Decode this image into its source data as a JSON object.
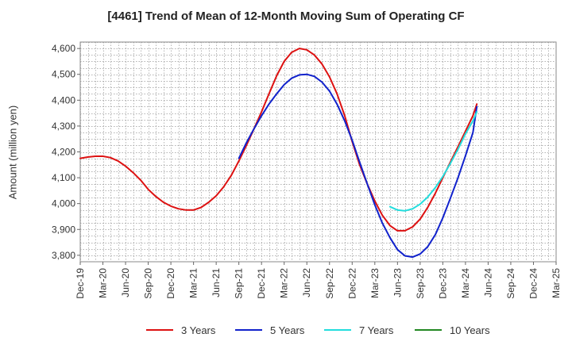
{
  "chart_data": {
    "type": "line",
    "title": "[4461]  Trend of Mean of 12-Month Moving Sum of Operating CF",
    "xlabel": "",
    "ylabel": "Amount (million yen)",
    "ylim": [
      3775,
      4625
    ],
    "yticks": [
      3800,
      3900,
      4000,
      4100,
      4200,
      4300,
      4400,
      4500,
      4600
    ],
    "ytick_labels": [
      "3,800",
      "3,900",
      "4,000",
      "4,100",
      "4,200",
      "4,300",
      "4,400",
      "4,500",
      "4,600"
    ],
    "categories": [
      "Dec-19",
      "Mar-20",
      "Jun-20",
      "Sep-20",
      "Dec-20",
      "Mar-21",
      "Jun-21",
      "Sep-21",
      "Dec-21",
      "Mar-22",
      "Jun-22",
      "Sep-22",
      "Dec-22",
      "Mar-23",
      "Jun-23",
      "Sep-23",
      "Dec-23",
      "Mar-24",
      "Jun-24",
      "Sep-24",
      "Dec-24",
      "Mar-25"
    ],
    "grid": true,
    "legend_position": "bottom",
    "series": [
      {
        "name": "3 Years",
        "color": "#dd1111",
        "points": [
          [
            0,
            4175
          ],
          [
            0.33,
            4180
          ],
          [
            0.67,
            4183
          ],
          [
            1,
            4183
          ],
          [
            1.33,
            4178
          ],
          [
            1.67,
            4165
          ],
          [
            2,
            4145
          ],
          [
            2.33,
            4120
          ],
          [
            2.67,
            4090
          ],
          [
            3,
            4055
          ],
          [
            3.33,
            4028
          ],
          [
            3.67,
            4005
          ],
          [
            4,
            3990
          ],
          [
            4.33,
            3980
          ],
          [
            4.67,
            3975
          ],
          [
            5,
            3975
          ],
          [
            5.33,
            3985
          ],
          [
            5.67,
            4005
          ],
          [
            6,
            4030
          ],
          [
            6.33,
            4065
          ],
          [
            6.67,
            4110
          ],
          [
            7,
            4165
          ],
          [
            7.33,
            4225
          ],
          [
            7.67,
            4290
          ],
          [
            8,
            4355
          ],
          [
            8.33,
            4425
          ],
          [
            8.67,
            4495
          ],
          [
            9,
            4550
          ],
          [
            9.33,
            4585
          ],
          [
            9.67,
            4600
          ],
          [
            10,
            4595
          ],
          [
            10.33,
            4575
          ],
          [
            10.67,
            4540
          ],
          [
            11,
            4490
          ],
          [
            11.33,
            4425
          ],
          [
            11.67,
            4340
          ],
          [
            12,
            4240
          ],
          [
            12.33,
            4150
          ],
          [
            12.67,
            4075
          ],
          [
            13,
            4010
          ],
          [
            13.33,
            3955
          ],
          [
            13.67,
            3915
          ],
          [
            14,
            3895
          ],
          [
            14.33,
            3895
          ],
          [
            14.67,
            3910
          ],
          [
            15,
            3940
          ],
          [
            15.33,
            3985
          ],
          [
            15.67,
            4040
          ],
          [
            16,
            4100
          ],
          [
            16.33,
            4160
          ],
          [
            16.67,
            4220
          ],
          [
            17,
            4280
          ],
          [
            17.33,
            4340
          ],
          [
            17.5,
            4385
          ]
        ]
      },
      {
        "name": "5 Years",
        "color": "#1122cc",
        "points": [
          [
            7,
            4175
          ],
          [
            7.33,
            4235
          ],
          [
            7.67,
            4290
          ],
          [
            8,
            4340
          ],
          [
            8.33,
            4385
          ],
          [
            8.67,
            4425
          ],
          [
            9,
            4460
          ],
          [
            9.33,
            4485
          ],
          [
            9.67,
            4498
          ],
          [
            10,
            4500
          ],
          [
            10.33,
            4492
          ],
          [
            10.67,
            4470
          ],
          [
            11,
            4435
          ],
          [
            11.33,
            4385
          ],
          [
            11.67,
            4320
          ],
          [
            12,
            4245
          ],
          [
            12.33,
            4160
          ],
          [
            12.67,
            4075
          ],
          [
            13,
            3995
          ],
          [
            13.33,
            3925
          ],
          [
            13.67,
            3868
          ],
          [
            14,
            3822
          ],
          [
            14.33,
            3798
          ],
          [
            14.67,
            3793
          ],
          [
            15,
            3805
          ],
          [
            15.33,
            3833
          ],
          [
            15.67,
            3880
          ],
          [
            16,
            3945
          ],
          [
            16.33,
            4020
          ],
          [
            16.67,
            4100
          ],
          [
            17,
            4185
          ],
          [
            17.33,
            4275
          ],
          [
            17.5,
            4375
          ]
        ]
      },
      {
        "name": "7 Years",
        "color": "#22dddd",
        "points": [
          [
            13.67,
            3988
          ],
          [
            14,
            3975
          ],
          [
            14.33,
            3972
          ],
          [
            14.67,
            3980
          ],
          [
            15,
            3998
          ],
          [
            15.33,
            4025
          ],
          [
            15.67,
            4062
          ],
          [
            16,
            4105
          ],
          [
            16.33,
            4155
          ],
          [
            16.67,
            4210
          ],
          [
            17,
            4270
          ],
          [
            17.33,
            4320
          ],
          [
            17.5,
            4355
          ]
        ]
      },
      {
        "name": "10 Years",
        "color": "#228822",
        "points": []
      }
    ]
  }
}
